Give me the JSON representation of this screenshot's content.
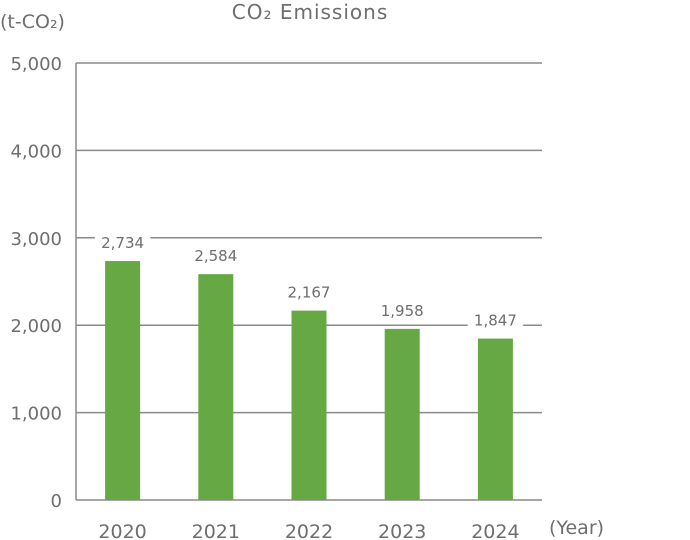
{
  "chart_data": {
    "type": "bar",
    "title": "CO₂ Emissions",
    "ylabel": "(t-CO₂)",
    "xlabel": "(Year)",
    "categories": [
      "2020",
      "2021",
      "2022",
      "2023",
      "2024"
    ],
    "values": [
      2734,
      2584,
      2167,
      1958,
      1847
    ],
    "value_labels": [
      "2,734",
      "2,584",
      "2,167",
      "1,958",
      "1,847"
    ],
    "ylim": [
      0,
      5000
    ],
    "yticks": [
      0,
      1000,
      2000,
      3000,
      4000,
      5000
    ],
    "ytick_labels": [
      "0",
      "1,000",
      "2,000",
      "3,000",
      "4,000",
      "5,000"
    ],
    "grid": true,
    "legend": "none",
    "colors": {
      "bar": "#66a843",
      "text": "#6e6e6e",
      "grid": "#8a8a8a",
      "background": "#ffffff"
    }
  }
}
